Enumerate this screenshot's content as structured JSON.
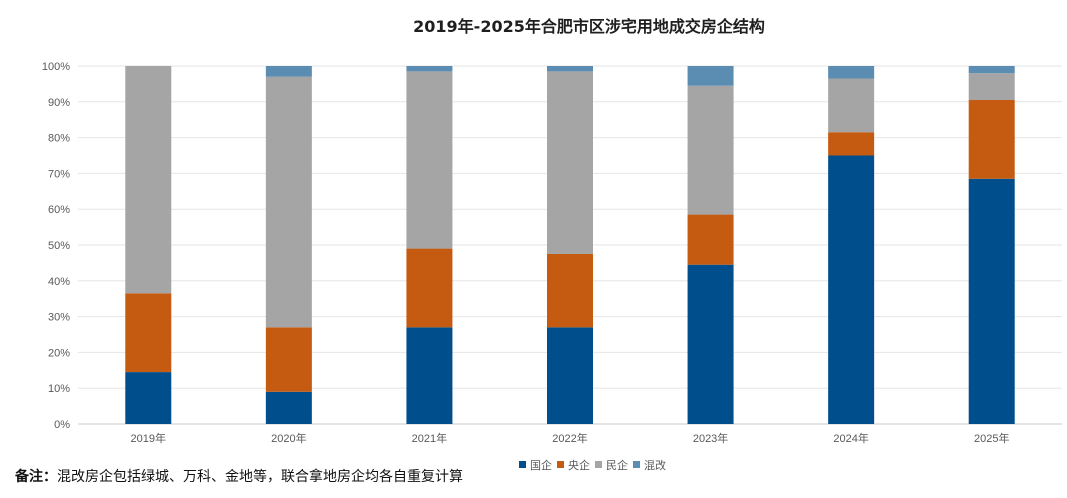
{
  "chart_data": {
    "type": "bar",
    "stacked": true,
    "title": "2019年-2025年合肥市区涉宅用地成交房企结构",
    "categories": [
      "2019年",
      "2020年",
      "2021年",
      "2022年",
      "2023年",
      "2024年",
      "2025年"
    ],
    "series": [
      {
        "name": "国企",
        "color": "#004f8c",
        "values": [
          14.5,
          9,
          27,
          27,
          44.5,
          75,
          68.5
        ]
      },
      {
        "name": "央企",
        "color": "#c55a11",
        "values": [
          22,
          18,
          22,
          20.5,
          14,
          6.5,
          22
        ]
      },
      {
        "name": "民企",
        "color": "#a5a5a5",
        "values": [
          63.5,
          70,
          49.5,
          51,
          36,
          15,
          7.5
        ]
      },
      {
        "name": "混改",
        "color": "#5b8db3",
        "values": [
          0,
          3,
          1.5,
          1.5,
          5.5,
          3.5,
          2
        ]
      }
    ],
    "yticks": [
      "0%",
      "10%",
      "20%",
      "30%",
      "40%",
      "50%",
      "60%",
      "70%",
      "80%",
      "90%",
      "100%"
    ],
    "ylim": [
      0,
      100
    ],
    "legend_position": "bottom",
    "grid": true
  },
  "note": {
    "label": "备注：",
    "text": "混改房企包括绿城、万科、金地等，联合拿地房企均各自重复计算"
  }
}
